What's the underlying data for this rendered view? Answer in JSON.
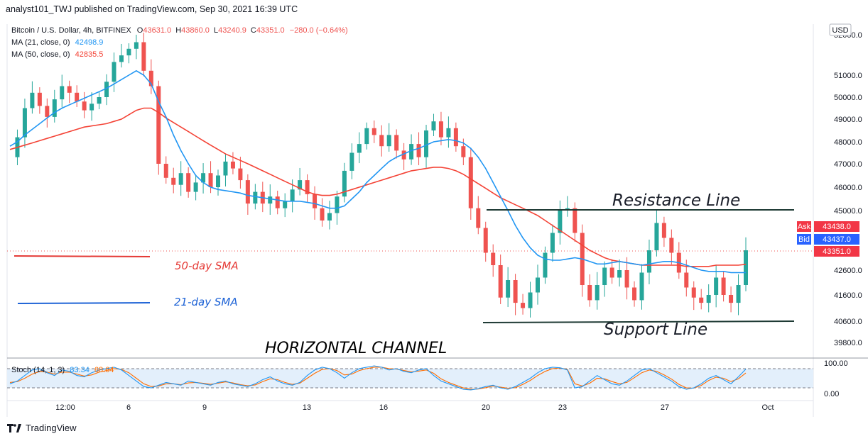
{
  "header": {
    "publisher": "analyst101_TWJ published on TradingView.com, Sep 30, 2021 16:39 UTC"
  },
  "legend": {
    "symbol": "Bitcoin / U.S. Dollar, 4h, BITFINEX",
    "ohlc": {
      "o_label": "O",
      "o": "43631.0",
      "h_label": "H",
      "h": "43860.0",
      "l_label": "L",
      "l": "43240.9",
      "c_label": "C",
      "c": "43351.0",
      "change": "−280.0 (−0.64%)"
    },
    "ma21": {
      "label": "MA (21, close, 0)",
      "value": "42498.9",
      "color": "#2196f3"
    },
    "ma50": {
      "label": "MA (50, close, 0)",
      "value": "42835.5",
      "color": "#f44336"
    },
    "stoch": {
      "label": "Stoch (14, 1, 3)",
      "k": "83.34",
      "d": "68.64",
      "k_color": "#2196f3",
      "d_color": "#ff6d00"
    }
  },
  "axis": {
    "currency": "USD",
    "price_ticks": [
      "51000.0",
      "50000.0",
      "49000.0",
      "48000.0",
      "47000.0",
      "46000.0",
      "45000.0",
      "42600.0",
      "41600.0",
      "40600.0",
      "39800.0"
    ],
    "top_partial_tick": "52000.0",
    "stoch_ticks": [
      "100.00",
      "0.00"
    ],
    "time_ticks": [
      "12:00",
      "6",
      "9",
      "13",
      "16",
      "20",
      "23",
      "27",
      "Oct"
    ]
  },
  "price_labels": {
    "ask": {
      "label": "Ask",
      "value": "43438.0",
      "color": "#f23645"
    },
    "bid": {
      "label": "Bid",
      "value": "43437.0",
      "color": "#2962ff"
    },
    "last": {
      "value": "43351.0",
      "color": "#f23645"
    }
  },
  "annotations": {
    "resistance": "Resistance Line",
    "support": "Support Line",
    "channel": "HORIZONTAL CHANNEL",
    "sma50": "50-day SMA",
    "sma21": "21-day SMA"
  },
  "colors": {
    "up": "#26a69a",
    "down": "#ef5350",
    "ma21": "#2196f3",
    "ma50": "#f44336"
  },
  "chart_data": {
    "type": "candlestick",
    "title": "Bitcoin / U.S. Dollar, 4h, BITFINEX",
    "ylim": [
      39500,
      52000
    ],
    "path": [
      47300,
      48200,
      49500,
      50200,
      49600,
      49100,
      49900,
      50500,
      50200,
      49800,
      49400,
      49700,
      50000,
      50700,
      51600,
      51900,
      52200,
      52500,
      51200,
      50500,
      47000,
      46400,
      46100,
      46600,
      45800,
      46200,
      46600,
      46000,
      46500,
      47100,
      46800,
      46300,
      45300,
      45800,
      45300,
      45600,
      45100,
      45400,
      45900,
      46300,
      45700,
      45100,
      44600,
      44900,
      45600,
      46700,
      47500,
      47900,
      48600,
      48300,
      47800,
      48300,
      47600,
      47200,
      47900,
      47300,
      48500,
      48900,
      48200,
      48600,
      47800,
      47300,
      45100,
      44300,
      43300,
      42800,
      41500,
      42200,
      41300,
      41100,
      41700,
      42300,
      43300,
      44100,
      45000,
      45100,
      44100,
      42000,
      41400,
      42000,
      42700,
      42300,
      42600,
      41900,
      41400,
      42500,
      43400,
      44500,
      43900,
      43300,
      42500,
      41900,
      41500,
      41300,
      41600,
      42300,
      41600,
      41300,
      42000,
      43400
    ],
    "ma21": [
      47800,
      48000,
      48300,
      48550,
      48800,
      49050,
      49300,
      49500,
      49650,
      49800,
      49950,
      50100,
      50250,
      50400,
      50600,
      50800,
      51000,
      51200,
      51000,
      50600,
      49800,
      49100,
      48300,
      47600,
      47000,
      46500,
      46200,
      46000,
      45900,
      45850,
      45800,
      45750,
      45650,
      45600,
      45550,
      45500,
      45450,
      45400,
      45400,
      45400,
      45350,
      45300,
      45200,
      45100,
      45100,
      45200,
      45500,
      45800,
      46200,
      46500,
      46800,
      47100,
      47300,
      47450,
      47600,
      47700,
      47850,
      48000,
      48050,
      48100,
      48050,
      47950,
      47700,
      47300,
      46800,
      46200,
      45600,
      45000,
      44400,
      43900,
      43500,
      43200,
      43050,
      43000,
      43000,
      43050,
      43100,
      43050,
      42950,
      42850,
      42850,
      42900,
      42950,
      42900,
      42850,
      42800,
      42850,
      42900,
      42950,
      42950,
      42900,
      42800,
      42700,
      42600,
      42550,
      42550,
      42550,
      42500,
      42500,
      42500
    ],
    "ma50": [
      47650,
      47750,
      47850,
      47950,
      48050,
      48150,
      48250,
      48350,
      48450,
      48550,
      48650,
      48700,
      48750,
      48800,
      48900,
      49000,
      49200,
      49400,
      49500,
      49500,
      49300,
      49050,
      48850,
      48650,
      48450,
      48250,
      48050,
      47850,
      47650,
      47450,
      47300,
      47150,
      47000,
      46850,
      46700,
      46550,
      46400,
      46250,
      46100,
      45950,
      45800,
      45700,
      45650,
      45650,
      45700,
      45800,
      45900,
      46000,
      46100,
      46200,
      46300,
      46400,
      46500,
      46600,
      46700,
      46750,
      46800,
      46850,
      46850,
      46800,
      46700,
      46550,
      46350,
      46150,
      45950,
      45750,
      45550,
      45400,
      45250,
      45100,
      44950,
      44800,
      44600,
      44400,
      44200,
      44000,
      43800,
      43600,
      43400,
      43250,
      43100,
      43000,
      42950,
      42900,
      42850,
      42800,
      42800,
      42800,
      42800,
      42800,
      42800,
      42750,
      42750,
      42750,
      42750,
      42800,
      42800,
      42800,
      42800,
      42835
    ],
    "stoch_k": [
      30,
      40,
      60,
      80,
      85,
      70,
      60,
      80,
      75,
      60,
      55,
      70,
      80,
      85,
      90,
      80,
      60,
      40,
      20,
      15,
      25,
      35,
      30,
      25,
      40,
      35,
      30,
      25,
      35,
      40,
      30,
      25,
      20,
      30,
      45,
      55,
      40,
      30,
      25,
      35,
      60,
      80,
      90,
      85,
      70,
      50,
      70,
      85,
      90,
      95,
      90,
      80,
      85,
      75,
      70,
      80,
      85,
      60,
      40,
      30,
      20,
      10,
      8,
      12,
      20,
      25,
      15,
      10,
      20,
      35,
      50,
      70,
      85,
      90,
      88,
      80,
      15,
      20,
      40,
      60,
      45,
      30,
      25,
      40,
      60,
      80,
      85,
      70,
      55,
      40,
      20,
      10,
      15,
      30,
      50,
      60,
      45,
      30,
      55,
      83
    ],
    "stoch_d": [
      35,
      38,
      50,
      65,
      75,
      72,
      65,
      72,
      72,
      65,
      58,
      62,
      72,
      78,
      85,
      82,
      70,
      50,
      30,
      20,
      22,
      30,
      30,
      27,
      33,
      35,
      32,
      28,
      32,
      37,
      33,
      27,
      23,
      26,
      38,
      48,
      45,
      35,
      28,
      32,
      50,
      68,
      82,
      85,
      78,
      62,
      65,
      78,
      85,
      90,
      90,
      85,
      83,
      78,
      73,
      76,
      80,
      68,
      48,
      35,
      25,
      15,
      10,
      11,
      16,
      22,
      18,
      14,
      16,
      28,
      42,
      60,
      75,
      85,
      87,
      82,
      30,
      22,
      32,
      50,
      48,
      38,
      30,
      35,
      52,
      70,
      80,
      75,
      62,
      47,
      28,
      15,
      14,
      24,
      42,
      54,
      50,
      38,
      48,
      69
    ],
    "resistance": 45050,
    "support": 40600,
    "sma50_sample_level": 43300,
    "sma21_sample_level": 41300
  }
}
